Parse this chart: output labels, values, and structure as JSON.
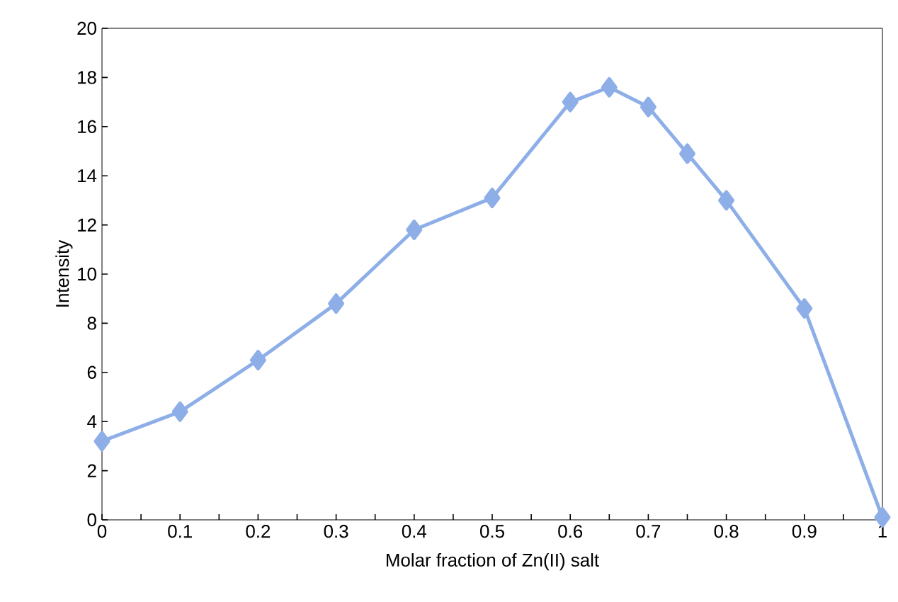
{
  "chart_data": {
    "type": "line",
    "xlabel": "Molar fraction of Zn(II) salt",
    "ylabel": "Intensity",
    "x": [
      0,
      0.1,
      0.2,
      0.3,
      0.4,
      0.5,
      0.6,
      0.65,
      0.7,
      0.75,
      0.8,
      0.9,
      1
    ],
    "series": [
      {
        "color": "#8eaee8",
        "values": [
          3.2,
          4.4,
          6.5,
          8.8,
          11.8,
          13.1,
          17.0,
          17.6,
          16.8,
          14.9,
          13.0,
          8.6,
          0.1
        ]
      }
    ],
    "xlim": [
      0,
      1
    ],
    "ylim": [
      0,
      20
    ],
    "xticks": [
      0,
      {
        "value": 0.05,
        "label": null
      },
      0.1,
      {
        "value": 0.15,
        "label": null
      },
      0.2,
      {
        "value": 0.25,
        "label": null
      },
      0.3,
      {
        "value": 0.35,
        "label": null
      },
      0.4,
      {
        "value": 0.45,
        "label": null
      },
      0.5,
      {
        "value": 0.55,
        "label": null
      },
      0.6,
      {
        "value": 0.65,
        "label": null
      },
      0.7,
      {
        "value": 0.75,
        "label": null
      },
      0.8,
      {
        "value": 0.85,
        "label": null
      },
      0.9,
      {
        "value": 0.95,
        "label": null
      },
      1
    ],
    "yticks": [
      0,
      2,
      4,
      6,
      8,
      10,
      12,
      14,
      16,
      18,
      20
    ],
    "grid": false,
    "marker": "diamond",
    "line_style": "solid"
  }
}
